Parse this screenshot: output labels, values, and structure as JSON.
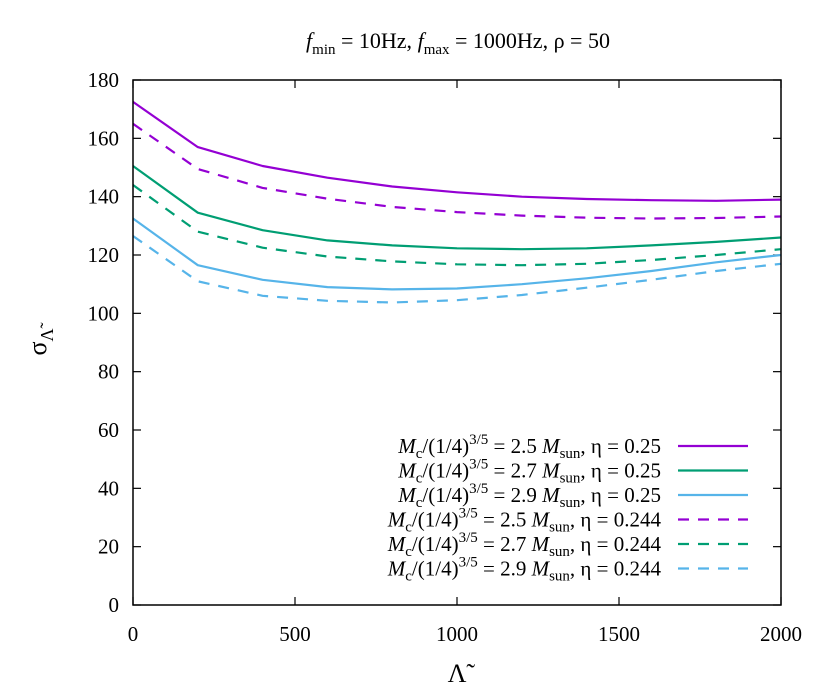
{
  "chart_data": {
    "type": "line",
    "title": "f_min = 10Hz, f_max = 1000Hz, ρ = 50",
    "title_parts": {
      "f1": "f",
      "min": "min",
      "eq1": " = 10Hz, ",
      "f2": "f",
      "max": "max",
      "eq2": " = 1000Hz, ρ = 50"
    },
    "xlabel": "Λ̃",
    "ylabel_main": "σ",
    "ylabel_sub": "Λ̃",
    "xlim": [
      0,
      2000
    ],
    "ylim": [
      0,
      180
    ],
    "xticks": [
      0,
      500,
      1000,
      1500,
      2000
    ],
    "yticks": [
      0,
      20,
      40,
      60,
      80,
      100,
      120,
      140,
      160,
      180
    ],
    "grid": false,
    "legend_position": "bottom-right",
    "x": [
      0,
      200,
      400,
      600,
      800,
      1000,
      1200,
      1400,
      1600,
      1800,
      2000
    ],
    "series": [
      {
        "name": "Mc/(1/4)^3/5 = 2.5 Msun, η = 0.25",
        "label_parts": {
          "m": "M",
          "c": "c",
          "frac": "/(1/4)",
          "exp": "3/5",
          "val": " = 2.5 ",
          "m2": "M",
          "sun": "sun",
          "tail": ", η = 0.25"
        },
        "color": "#9400d3",
        "dash": "solid",
        "values": [
          172.5,
          157,
          150.5,
          146.5,
          143.5,
          141.5,
          140,
          139.2,
          138.8,
          138.6,
          139
        ]
      },
      {
        "name": "Mc/(1/4)^3/5 = 2.7 Msun, η = 0.25",
        "label_parts": {
          "m": "M",
          "c": "c",
          "frac": "/(1/4)",
          "exp": "3/5",
          "val": " = 2.7 ",
          "m2": "M",
          "sun": "sun",
          "tail": ", η = 0.25"
        },
        "color": "#009e73",
        "dash": "solid",
        "values": [
          150.5,
          134.5,
          128.5,
          125,
          123.3,
          122.3,
          122,
          122.3,
          123.3,
          124.5,
          126
        ]
      },
      {
        "name": "Mc/(1/4)^3/5 = 2.9 Msun, η = 0.25",
        "label_parts": {
          "m": "M",
          "c": "c",
          "frac": "/(1/4)",
          "exp": "3/5",
          "val": " = 2.9 ",
          "m2": "M",
          "sun": "sun",
          "tail": ", η = 0.25"
        },
        "color": "#56b4e9",
        "dash": "solid",
        "values": [
          132.5,
          116.5,
          111.5,
          109,
          108.2,
          108.5,
          110,
          112,
          114.5,
          117.5,
          120
        ]
      },
      {
        "name": "Mc/(1/4)^3/5 = 2.5 Msun, η = 0.244",
        "label_parts": {
          "m": "M",
          "c": "c",
          "frac": "/(1/4)",
          "exp": "3/5",
          "val": " = 2.5 ",
          "m2": "M",
          "sun": "sun",
          "tail": ", η = 0.244"
        },
        "color": "#9400d3",
        "dash": "dashed",
        "values": [
          165,
          149.5,
          143,
          139.3,
          136.5,
          134.7,
          133.5,
          132.8,
          132.5,
          132.7,
          133.2
        ]
      },
      {
        "name": "Mc/(1/4)^3/5 = 2.7 Msun, η = 0.244",
        "label_parts": {
          "m": "M",
          "c": "c",
          "frac": "/(1/4)",
          "exp": "3/5",
          "val": " = 2.7 ",
          "m2": "M",
          "sun": "sun",
          "tail": ", η = 0.244"
        },
        "color": "#009e73",
        "dash": "dashed",
        "values": [
          144,
          128,
          122.5,
          119.5,
          117.8,
          116.8,
          116.5,
          117,
          118.3,
          120,
          122
        ]
      },
      {
        "name": "Mc/(1/4)^3/5 = 2.9 Msun, η = 0.244",
        "label_parts": {
          "m": "M",
          "c": "c",
          "frac": "/(1/4)",
          "exp": "3/5",
          "val": " = 2.9 ",
          "m2": "M",
          "sun": "sun",
          "tail": ", η = 0.244"
        },
        "color": "#56b4e9",
        "dash": "dashed",
        "values": [
          126.5,
          111,
          106,
          104.3,
          103.7,
          104.5,
          106.3,
          108.8,
          111.5,
          114.5,
          117
        ]
      }
    ]
  }
}
